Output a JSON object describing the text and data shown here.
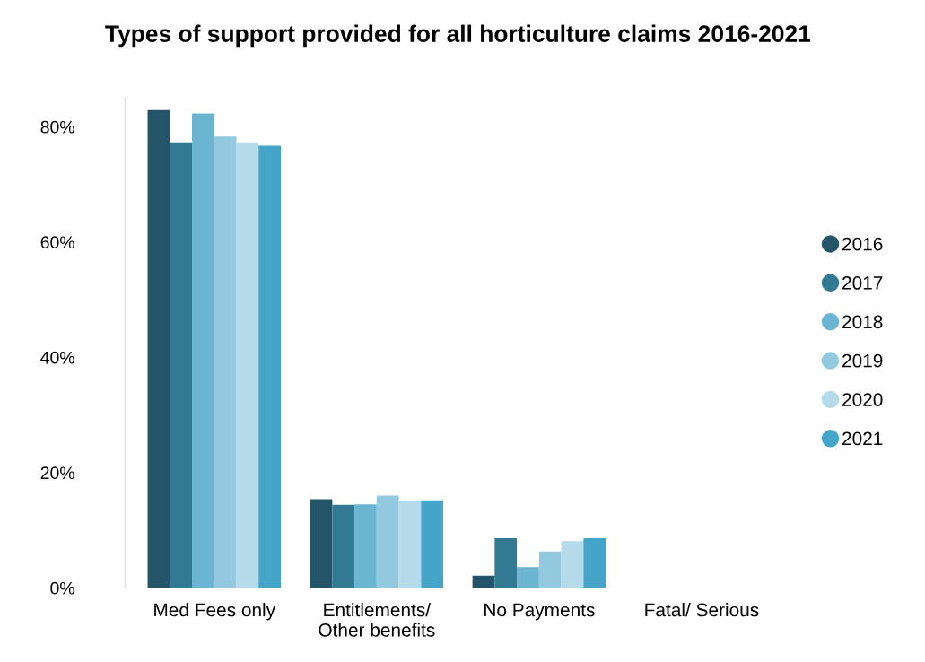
{
  "chart_data": {
    "type": "bar",
    "title": "Types of support provided for all horticulture claims 2016-2021",
    "categories": [
      "Med Fees only",
      "Entitlements/\nOther benefits",
      "No Payments",
      "Fatal/ Serious"
    ],
    "series": [
      {
        "name": "2016",
        "color": "#235467",
        "values": [
          82.9,
          15.4,
          2.1,
          0
        ]
      },
      {
        "name": "2017",
        "color": "#327a93",
        "values": [
          77.3,
          14.4,
          8.6,
          0
        ]
      },
      {
        "name": "2018",
        "color": "#6bb5d3",
        "values": [
          82.3,
          14.5,
          3.6,
          0
        ]
      },
      {
        "name": "2019",
        "color": "#93c9de",
        "values": [
          78.3,
          16.0,
          6.3,
          0
        ]
      },
      {
        "name": "2020",
        "color": "#b5dbea",
        "values": [
          77.3,
          15.1,
          8.1,
          0
        ]
      },
      {
        "name": "2021",
        "color": "#44a5c9",
        "values": [
          76.7,
          15.2,
          8.6,
          0
        ]
      }
    ],
    "ylim": [
      0,
      85
    ],
    "yticks": [
      {
        "value": 0,
        "label": "0%"
      },
      {
        "value": 20,
        "label": "20%"
      },
      {
        "value": 40,
        "label": "40%"
      },
      {
        "value": 60,
        "label": "60%"
      },
      {
        "value": 80,
        "label": "80%"
      }
    ],
    "grid": false,
    "legend": "right",
    "marker": "circle"
  }
}
